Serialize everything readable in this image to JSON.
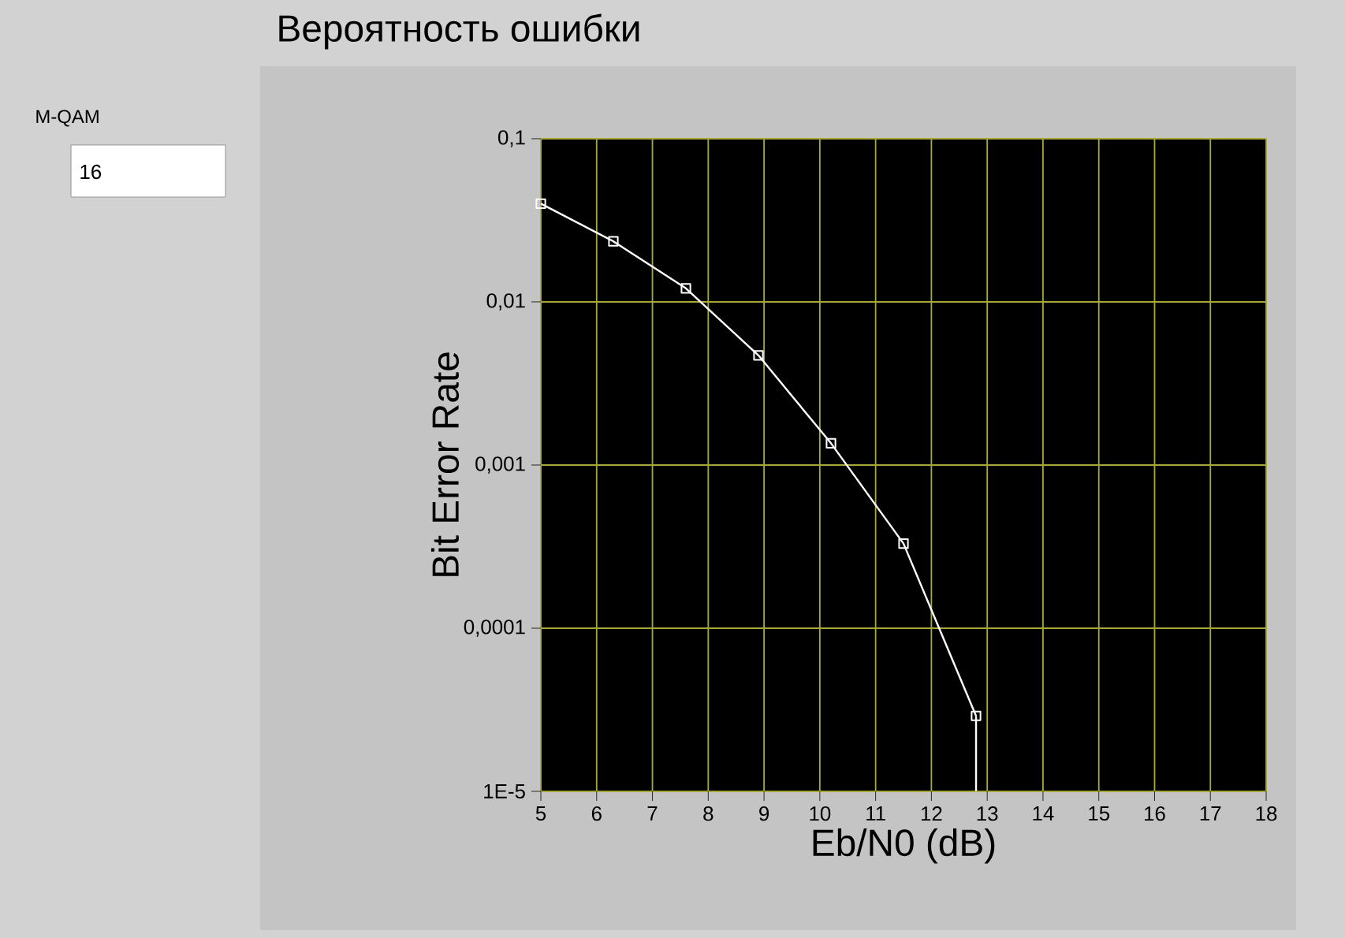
{
  "chart_data": {
    "type": "line",
    "title": "Вероятность ошибки",
    "xlabel": "Eb/N0 (dB)",
    "ylabel": "Bit Error Rate",
    "series": [
      {
        "color": "#ffffff",
        "x": [
          5,
          6.3,
          7.6,
          8.9,
          10.2,
          11.5,
          12.8
        ],
        "values": [
          0.04,
          0.0235,
          0.0121,
          0.0047,
          0.00136,
          0.00033,
          2.9e-05
        ],
        "marker": "square"
      },
      {
        "color": "#ffffff",
        "x": [
          12.8,
          12.8
        ],
        "values": [
          2.9e-05,
          1e-05
        ],
        "marker": "none"
      }
    ],
    "xlim": [
      5,
      18
    ],
    "xticks": [
      5,
      6,
      7,
      8,
      9,
      10,
      11,
      12,
      13,
      14,
      15,
      16,
      17,
      18
    ],
    "ylim": [
      1e-05,
      0.1
    ],
    "yticks": [
      {
        "value": 1e-05,
        "label": "1E-5"
      },
      {
        "value": 0.0001,
        "label": "0,0001"
      },
      {
        "value": 0.001,
        "label": "0,001"
      },
      {
        "value": 0.01,
        "label": "0,01"
      },
      {
        "value": 0.1,
        "label": "0,1"
      }
    ],
    "log": "y",
    "grid": true,
    "line_style": "solid",
    "annotations": [
      "M-QAM",
      "16"
    ]
  }
}
